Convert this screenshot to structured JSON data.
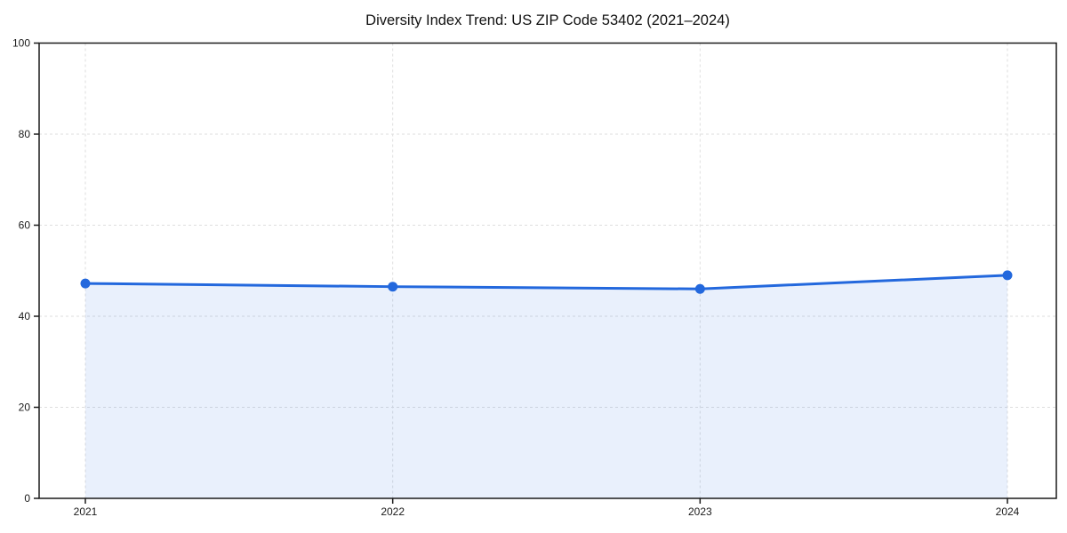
{
  "page": {
    "background": "#ffffff"
  },
  "chart_data": {
    "type": "area",
    "title": "Diversity Index Trend: US ZIP Code 53402 (2021–2024)",
    "x": [
      "2021",
      "2022",
      "2023",
      "2024"
    ],
    "series": [
      {
        "name": "Diversity Index",
        "values": [
          47.2,
          46.5,
          46.0,
          49.0
        ]
      }
    ],
    "xlabel": "",
    "ylabel": "",
    "ylim": [
      0,
      100
    ],
    "yticks": [
      0,
      20,
      40,
      60,
      80,
      100
    ],
    "grid": true,
    "grid_style": "dashed",
    "legend": "none",
    "markers": "circle",
    "colors": {
      "line": "#2368dd",
      "fill_opacity": 0.1,
      "grid": "#dedede",
      "axis": "#1a1a1a",
      "tick_text": "#1a1a1a",
      "title_text": "#111111"
    }
  }
}
